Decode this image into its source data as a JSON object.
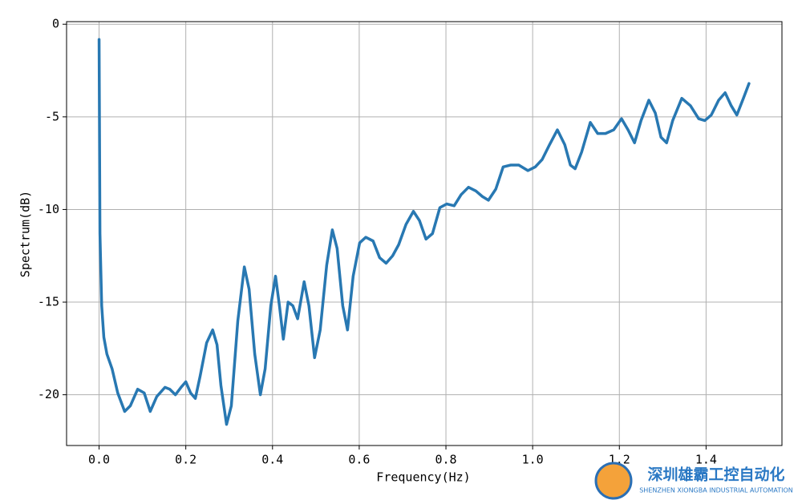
{
  "chart_data": {
    "type": "line",
    "xlabel": "Frequency(Hz)",
    "ylabel": "Spectrum(dB)",
    "xlim": [
      -0.075,
      1.575
    ],
    "ylim": [
      -22.74,
      0.14
    ],
    "xticks": [
      {
        "value": 0,
        "label": "0.0"
      },
      0.2,
      0.4,
      0.6,
      0.8,
      {
        "value": 1,
        "label": "1.0"
      },
      1.2,
      1.4
    ],
    "yticks": [
      0,
      -5,
      -10,
      -15,
      -20
    ],
    "grid": true,
    "series": [
      {
        "color": "#2878b2",
        "x": [
          0,
          0.002,
          0.006,
          0.011,
          0.018,
          0.03,
          0.043,
          0.059,
          0.072,
          0.089,
          0.104,
          0.118,
          0.133,
          0.152,
          0.163,
          0.176,
          0.189,
          0.2,
          0.211,
          0.222,
          0.233,
          0.248,
          0.262,
          0.272,
          0.281,
          0.294,
          0.305,
          0.32,
          0.335,
          0.346,
          0.359,
          0.372,
          0.383,
          0.396,
          0.407,
          0.416,
          0.425,
          0.436,
          0.447,
          0.458,
          0.473,
          0.484,
          0.497,
          0.51,
          0.525,
          0.538,
          0.549,
          0.562,
          0.573,
          0.586,
          0.601,
          0.615,
          0.632,
          0.647,
          0.662,
          0.677,
          0.691,
          0.708,
          0.725,
          0.739,
          0.754,
          0.769,
          0.786,
          0.802,
          0.819,
          0.835,
          0.852,
          0.869,
          0.884,
          0.898,
          0.915,
          0.932,
          0.95,
          0.968,
          0.989,
          1.006,
          1.022,
          1.039,
          1.057,
          1.074,
          1.087,
          1.098,
          1.113,
          1.133,
          1.15,
          1.168,
          1.187,
          1.205,
          1.22,
          1.235,
          1.25,
          1.268,
          1.283,
          1.296,
          1.309,
          1.323,
          1.344,
          1.364,
          1.383,
          1.397,
          1.412,
          1.429,
          1.444,
          1.458,
          1.471,
          1.486,
          1.499
        ],
        "values": [
          -0.82,
          -11.3,
          -15.2,
          -16.9,
          -17.8,
          -18.6,
          -19.9,
          -20.9,
          -20.6,
          -19.7,
          -19.9,
          -20.9,
          -20.1,
          -19.6,
          -19.7,
          -20.0,
          -19.6,
          -19.3,
          -19.9,
          -20.2,
          -19.0,
          -17.2,
          -16.5,
          -17.3,
          -19.5,
          -21.6,
          -20.6,
          -16.0,
          -13.1,
          -14.3,
          -17.8,
          -20.0,
          -18.6,
          -15.2,
          -13.6,
          -15.2,
          -17.0,
          -15.0,
          -15.2,
          -15.9,
          -13.9,
          -15.2,
          -18.0,
          -16.5,
          -13.0,
          -11.1,
          -12.1,
          -15.2,
          -16.5,
          -13.6,
          -11.8,
          -11.5,
          -11.7,
          -12.6,
          -12.9,
          -12.5,
          -11.9,
          -10.8,
          -10.1,
          -10.6,
          -11.6,
          -11.3,
          -9.9,
          -9.7,
          -9.8,
          -9.2,
          -8.8,
          -9.0,
          -9.3,
          -9.5,
          -8.9,
          -7.7,
          -7.6,
          -7.6,
          -7.9,
          -7.7,
          -7.3,
          -6.5,
          -5.7,
          -6.5,
          -7.6,
          -7.8,
          -6.9,
          -5.3,
          -5.9,
          -5.9,
          -5.7,
          -5.1,
          -5.7,
          -6.4,
          -5.2,
          -4.1,
          -4.8,
          -6.1,
          -6.4,
          -5.2,
          -4.0,
          -4.4,
          -5.1,
          -5.2,
          -4.9,
          -4.1,
          -3.7,
          -4.4,
          -4.9,
          -4.0,
          -3.2
        ]
      }
    ]
  },
  "watermark": {
    "title": "深圳雄霸工控自动化",
    "subtitle": "SHENZHEN XIONGBA INDUSTRIAL AUTOMATION"
  }
}
